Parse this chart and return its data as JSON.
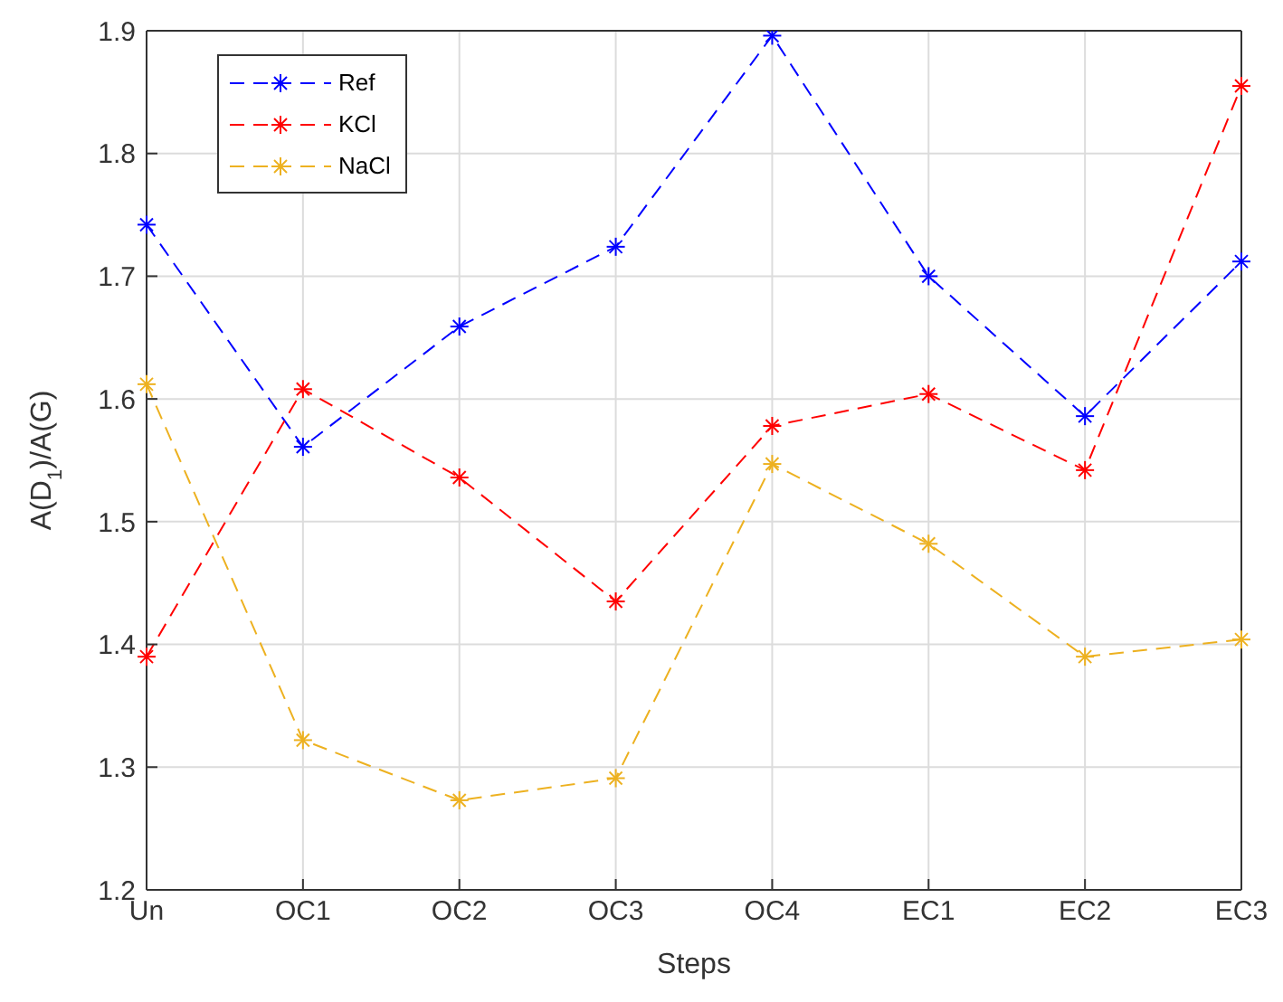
{
  "chart_data": {
    "type": "line",
    "xlabel": "Steps",
    "ylabel": "A(D$_{1}$)/A(G)",
    "categories": [
      "Un",
      "OC1",
      "OC2",
      "OC3",
      "OC4",
      "EC1",
      "EC2",
      "EC3"
    ],
    "series": [
      {
        "name": "Ref",
        "color": "#0000ff",
        "values": [
          1.742,
          1.561,
          1.659,
          1.724,
          1.896,
          1.7,
          1.586,
          1.712
        ]
      },
      {
        "name": "KCl",
        "color": "#ff0000",
        "values": [
          1.39,
          1.608,
          1.536,
          1.435,
          1.578,
          1.604,
          1.542,
          1.855
        ]
      },
      {
        "name": "NaCl",
        "color": "#edb120",
        "values": [
          1.612,
          1.322,
          1.273,
          1.291,
          1.547,
          1.482,
          1.39,
          1.404
        ]
      }
    ],
    "ylim": [
      1.2,
      1.9
    ],
    "yticks": [
      1.2,
      1.3,
      1.4,
      1.5,
      1.6,
      1.7,
      1.8,
      1.9
    ],
    "grid": true,
    "legend": "top left",
    "marker": "cross",
    "line_style": "dashed"
  }
}
